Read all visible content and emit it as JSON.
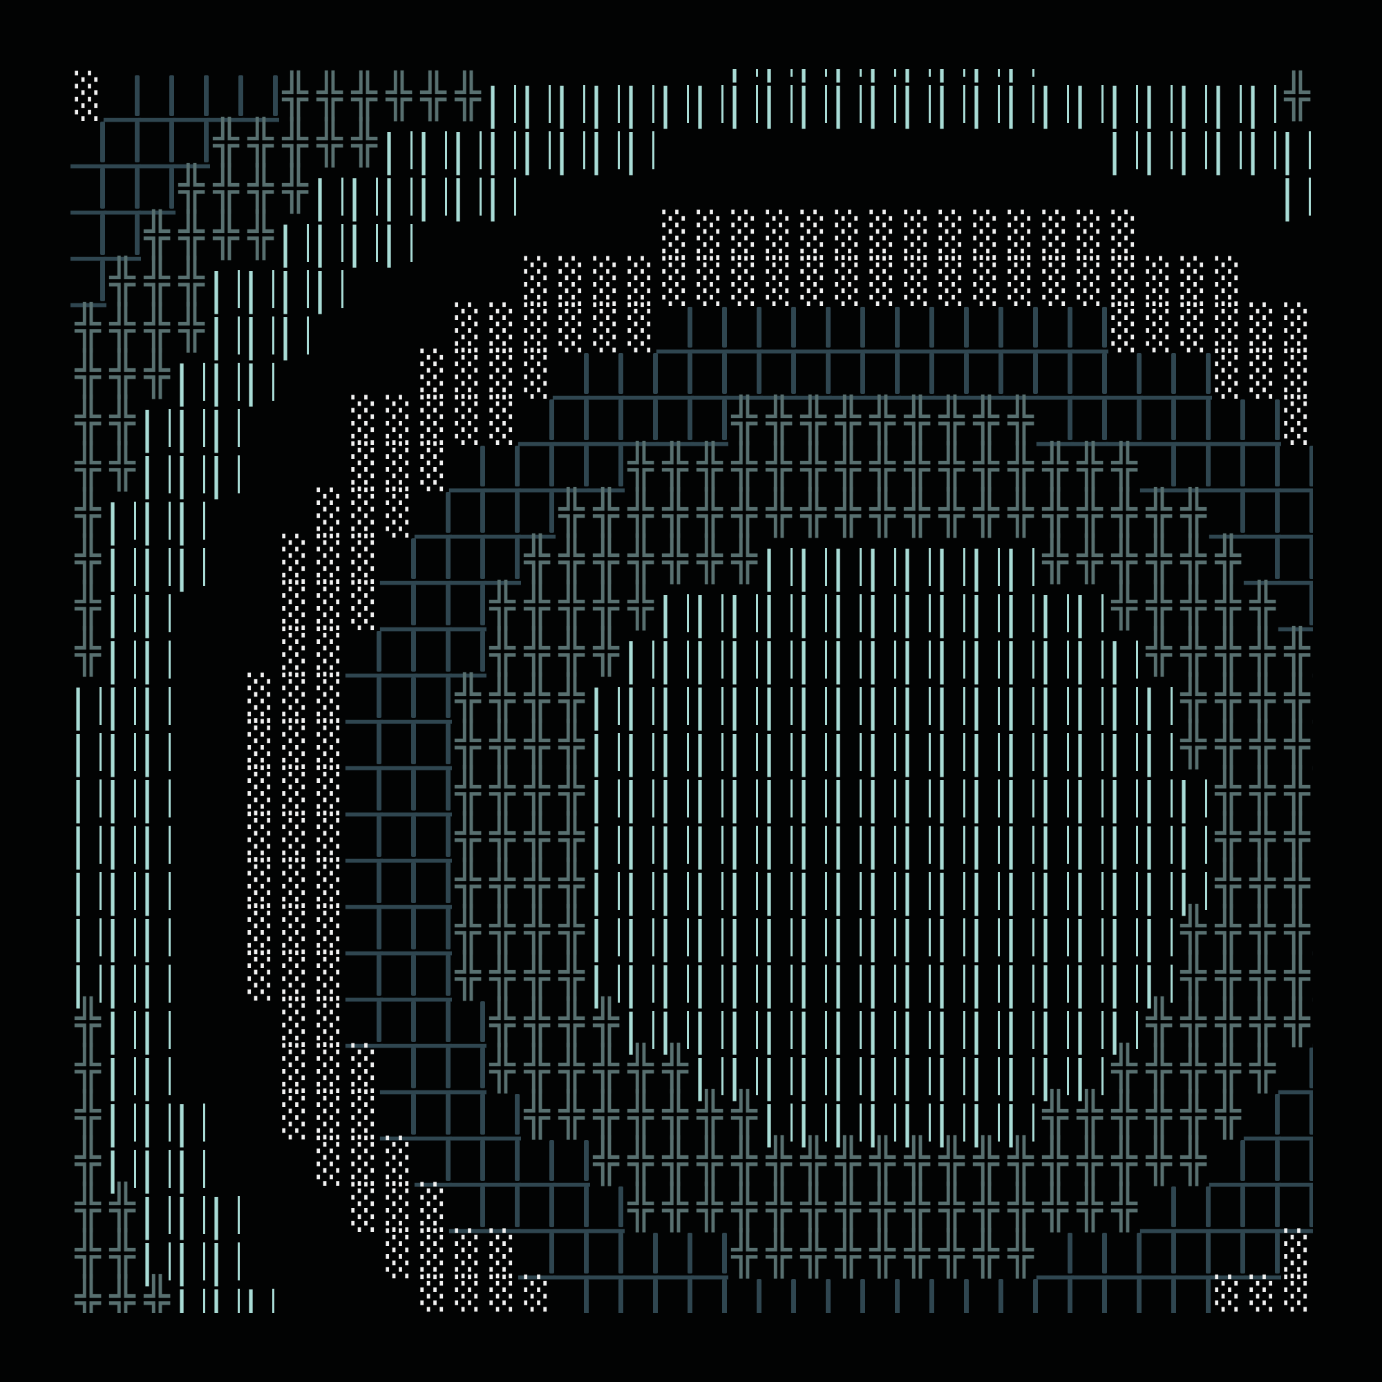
{
  "colors": {
    "background": "#020303",
    "shade": "#f2f2f2",
    "block": "#2f4650",
    "cross": "#587070",
    "pipe": "#a9dcd6"
  },
  "glyph_legend": {
    "░": "light-shade",
    "_": "corner-block",
    "╬": "double-cross",
    "|": "double-pipe",
    " ": "blank"
  },
  "art": {
    "rows": [
      "                   |||||||||         ",
      "░_____╬╬╬╬╬╬|||||||||||||||||||||||╬╬",
      "____╬╬╬╬╬||||||||             ||||||| ",
      "___╬╬╬╬||||||                      | ",
      "__╬╬╬╬||||       ░░░░░░░░░░░░░░      ",
      "_╬╬╬||||     ░░░░░░░░░░░░░░░░░░░░░   ",
      "╬╬╬╬|||    ░░░░░░_____________░░░░░░ ",
      "╬╬╬|||    ░░░░___________________░░░░",
      "╬╬|||   ░░░░░______╬╬╬╬╬╬╬╬╬_______░░",
      "╬╬|||   ░░░_____╬╬╬╬╬╬╬╬╬╬╬╬╬╬╬_____░",
      "╬|||   ░░░____╬╬╬╬╬╬╬╬╬╬╬╬╬╬╬╬╬╬╬____",
      "╬|||  ░░░____╬╬╬╬╬╬╬||||||||╬╬╬╬╬╬___",
      "╬||   ░░░___╬╬╬╬╬|||||||||||||╬╬╬╬╬__",
      "╬||   ░░____╬╬╬╬|||||||||||||||╬╬╬╬╬_",
      "|||  ░░░___╬╬╬╬|||||||||||||||||╬╬╬╬_",
      "|||  ░░░___╬╬╬╬|||||||||||||||||╬╬╬╬_",
      "|||  ░░░___╬╬╬╬||||||||||||||||||╬╬╬╬",
      "|||  ░░░___╬╬╬╬||||||||||||||||||╬╬╬╬",
      "|||  ░░░___╬╬╬╬||||||||||||||||||╬╬╬╬",
      "|||  ░░░___╬╬╬╬|||||||||||||||||╬╬╬╬_",
      "|||  ░░░___╬╬╬╬|||||||||||||||||╬╬╬╬_",
      "╬||   ░░____╬╬╬╬|||||||||||||||╬╬╬╬╬_",
      "╬||   ░░░___╬╬╬╬╬╬||||||||||||╬╬╬╬╬__",
      "╬|||  ░░░____╬╬╬╬╬╬╬||||||||╬╬╬╬╬╬___",
      "╬|||   ░░░_____╬╬╬╬╬╬╬╬╬╬╬╬╬╬╬╬╬╬____",
      "╬╬|||   ░░░_____╬╬╬╬╬╬╬╬╬╬╬╬╬╬╬_____░",
      "╬╬|||    ░░░░______╬╬╬╬╬╬╬╬╬_______░░",
      "╬╬╬|||    ░░░░___________________░░░░"
    ]
  }
}
